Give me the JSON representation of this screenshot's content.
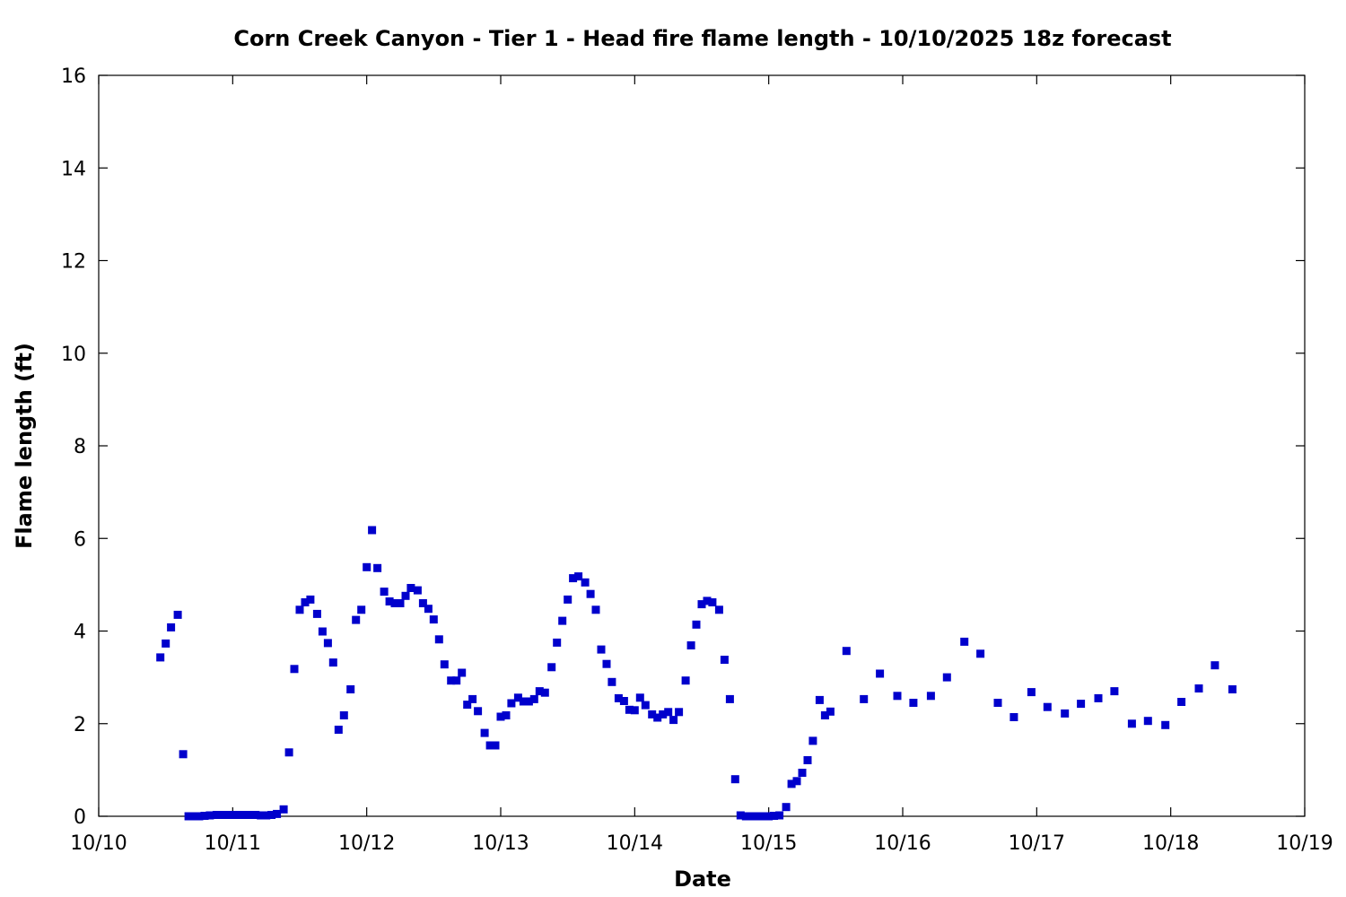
{
  "chart_data": {
    "type": "scatter",
    "title": "Corn Creek Canyon - Tier 1 - Head fire flame length - 10/10/2025 18z forecast",
    "xlabel": "Date",
    "ylabel": "Flame length (ft)",
    "xlim": [
      0,
      9
    ],
    "ylim": [
      0,
      16
    ],
    "x_ticks": [
      0,
      1,
      2,
      3,
      4,
      5,
      6,
      7,
      8,
      9
    ],
    "x_tick_labels": [
      "10/10",
      "10/11",
      "10/12",
      "10/13",
      "10/14",
      "10/15",
      "10/16",
      "10/17",
      "10/18",
      "10/19"
    ],
    "y_ticks": [
      0,
      2,
      4,
      6,
      8,
      10,
      12,
      14,
      16
    ],
    "y_tick_labels": [
      "0",
      "2",
      "4",
      "6",
      "8",
      "10",
      "12",
      "14",
      "16"
    ],
    "grid": false,
    "marker_color": "#0000cc",
    "x_unit": "days after 10/10",
    "points": [
      [
        0.46,
        3.43
      ],
      [
        0.5,
        3.73
      ],
      [
        0.54,
        4.08
      ],
      [
        0.59,
        4.35
      ],
      [
        0.63,
        1.34
      ],
      [
        0.67,
        0.0
      ],
      [
        0.71,
        0.0
      ],
      [
        0.75,
        0.0
      ],
      [
        0.79,
        0.01
      ],
      [
        0.83,
        0.02
      ],
      [
        0.88,
        0.03
      ],
      [
        0.92,
        0.03
      ],
      [
        0.96,
        0.03
      ],
      [
        1.0,
        0.03
      ],
      [
        1.04,
        0.03
      ],
      [
        1.08,
        0.03
      ],
      [
        1.13,
        0.03
      ],
      [
        1.17,
        0.03
      ],
      [
        1.21,
        0.02
      ],
      [
        1.25,
        0.02
      ],
      [
        1.29,
        0.03
      ],
      [
        1.33,
        0.05
      ],
      [
        1.38,
        0.15
      ],
      [
        1.42,
        1.38
      ],
      [
        1.46,
        3.18
      ],
      [
        1.5,
        4.46
      ],
      [
        1.54,
        4.62
      ],
      [
        1.58,
        4.68
      ],
      [
        1.63,
        4.37
      ],
      [
        1.67,
        3.99
      ],
      [
        1.71,
        3.74
      ],
      [
        1.75,
        3.32
      ],
      [
        1.79,
        1.87
      ],
      [
        1.83,
        2.18
      ],
      [
        1.88,
        2.74
      ],
      [
        1.92,
        4.24
      ],
      [
        1.96,
        4.46
      ],
      [
        2.0,
        5.38
      ],
      [
        2.04,
        6.18
      ],
      [
        2.08,
        5.36
      ],
      [
        2.13,
        4.85
      ],
      [
        2.17,
        4.64
      ],
      [
        2.21,
        4.6
      ],
      [
        2.25,
        4.6
      ],
      [
        2.29,
        4.76
      ],
      [
        2.33,
        4.93
      ],
      [
        2.38,
        4.88
      ],
      [
        2.42,
        4.6
      ],
      [
        2.46,
        4.48
      ],
      [
        2.5,
        4.25
      ],
      [
        2.54,
        3.82
      ],
      [
        2.58,
        3.28
      ],
      [
        2.63,
        2.93
      ],
      [
        2.67,
        2.93
      ],
      [
        2.71,
        3.1
      ],
      [
        2.75,
        2.41
      ],
      [
        2.79,
        2.53
      ],
      [
        2.83,
        2.27
      ],
      [
        2.88,
        1.8
      ],
      [
        2.92,
        1.53
      ],
      [
        2.96,
        1.53
      ],
      [
        3.0,
        2.15
      ],
      [
        3.04,
        2.18
      ],
      [
        3.08,
        2.44
      ],
      [
        3.13,
        2.56
      ],
      [
        3.17,
        2.48
      ],
      [
        3.21,
        2.48
      ],
      [
        3.25,
        2.53
      ],
      [
        3.29,
        2.7
      ],
      [
        3.33,
        2.67
      ],
      [
        3.38,
        3.22
      ],
      [
        3.42,
        3.75
      ],
      [
        3.46,
        4.22
      ],
      [
        3.5,
        4.68
      ],
      [
        3.54,
        5.14
      ],
      [
        3.58,
        5.18
      ],
      [
        3.63,
        5.05
      ],
      [
        3.67,
        4.8
      ],
      [
        3.71,
        4.46
      ],
      [
        3.75,
        3.6
      ],
      [
        3.79,
        3.29
      ],
      [
        3.83,
        2.9
      ],
      [
        3.88,
        2.55
      ],
      [
        3.92,
        2.49
      ],
      [
        3.96,
        2.3
      ],
      [
        4.0,
        2.29
      ],
      [
        4.04,
        2.56
      ],
      [
        4.08,
        2.4
      ],
      [
        4.13,
        2.2
      ],
      [
        4.17,
        2.13
      ],
      [
        4.21,
        2.2
      ],
      [
        4.25,
        2.25
      ],
      [
        4.29,
        2.08
      ],
      [
        4.33,
        2.25
      ],
      [
        4.38,
        2.93
      ],
      [
        4.42,
        3.69
      ],
      [
        4.46,
        4.14
      ],
      [
        4.5,
        4.58
      ],
      [
        4.54,
        4.65
      ],
      [
        4.58,
        4.62
      ],
      [
        4.63,
        4.46
      ],
      [
        4.67,
        3.38
      ],
      [
        4.71,
        2.53
      ],
      [
        4.75,
        0.8
      ],
      [
        4.79,
        0.02
      ],
      [
        4.83,
        0.0
      ],
      [
        4.88,
        0.0
      ],
      [
        4.92,
        0.0
      ],
      [
        4.96,
        0.0
      ],
      [
        5.0,
        0.0
      ],
      [
        5.04,
        0.01
      ],
      [
        5.08,
        0.02
      ],
      [
        5.13,
        0.2
      ],
      [
        5.17,
        0.7
      ],
      [
        5.21,
        0.76
      ],
      [
        5.25,
        0.94
      ],
      [
        5.29,
        1.21
      ],
      [
        5.33,
        1.63
      ],
      [
        5.38,
        2.51
      ],
      [
        5.42,
        2.18
      ],
      [
        5.46,
        2.26
      ],
      [
        5.58,
        3.57
      ],
      [
        5.71,
        2.53
      ],
      [
        5.83,
        3.08
      ],
      [
        5.96,
        2.6
      ],
      [
        6.08,
        2.45
      ],
      [
        6.21,
        2.6
      ],
      [
        6.33,
        3.0
      ],
      [
        6.46,
        3.77
      ],
      [
        6.58,
        3.51
      ],
      [
        6.71,
        2.45
      ],
      [
        6.83,
        2.14
      ],
      [
        6.96,
        2.68
      ],
      [
        7.08,
        2.36
      ],
      [
        7.21,
        2.22
      ],
      [
        7.33,
        2.43
      ],
      [
        7.46,
        2.55
      ],
      [
        7.58,
        2.7
      ],
      [
        7.71,
        2.0
      ],
      [
        7.83,
        2.06
      ],
      [
        7.96,
        1.97
      ],
      [
        8.08,
        2.47
      ],
      [
        8.21,
        2.76
      ],
      [
        8.33,
        3.26
      ],
      [
        8.46,
        2.74
      ]
    ]
  }
}
